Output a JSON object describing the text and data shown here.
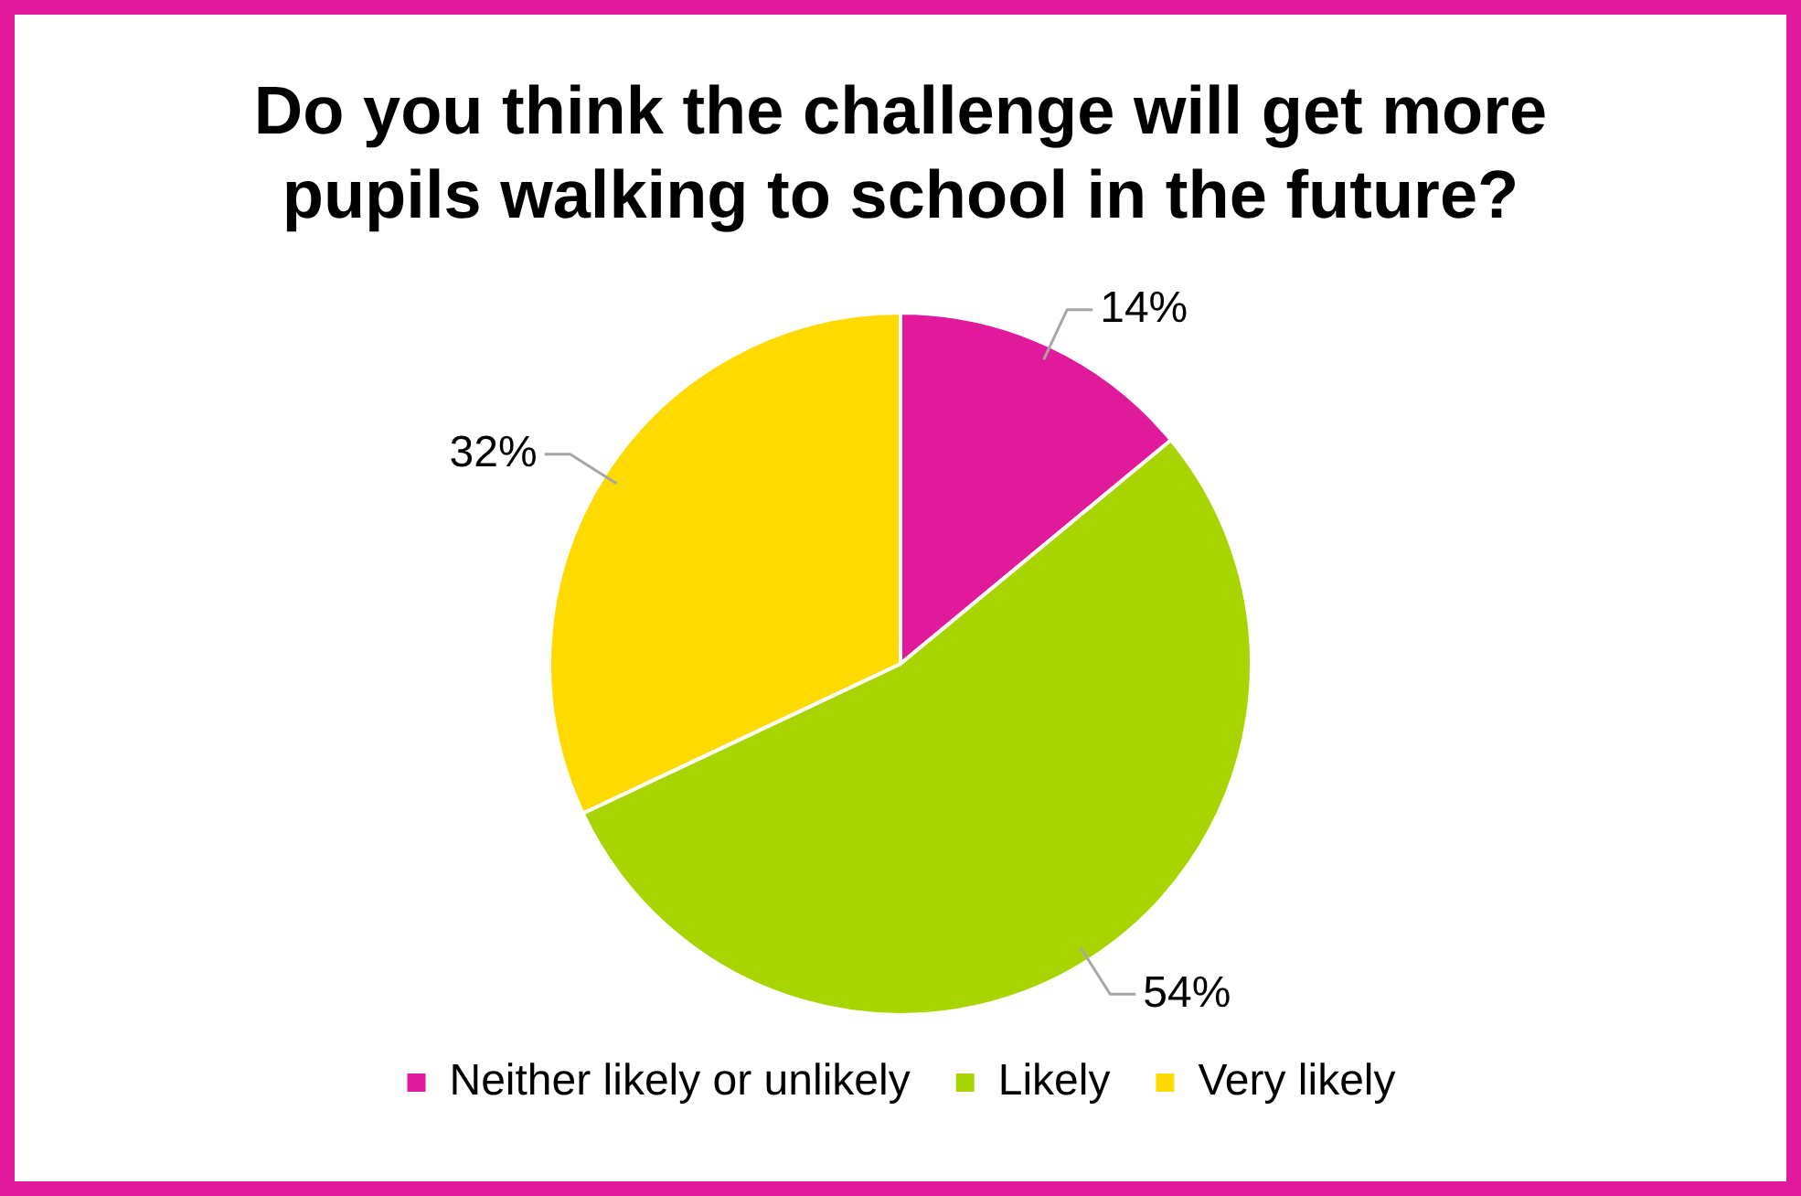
{
  "chart_data": {
    "type": "pie",
    "title": "Do you think the challenge will get more pupils walking to school in the future?",
    "categories": [
      "Neither likely or unlikely",
      "Likely",
      "Very likely"
    ],
    "values": [
      14,
      54,
      32
    ],
    "colors": [
      "#e01a9a",
      "#a8d500",
      "#ffda00"
    ],
    "value_labels": [
      "14%",
      "54%",
      "32%"
    ],
    "legend": "bottom"
  }
}
